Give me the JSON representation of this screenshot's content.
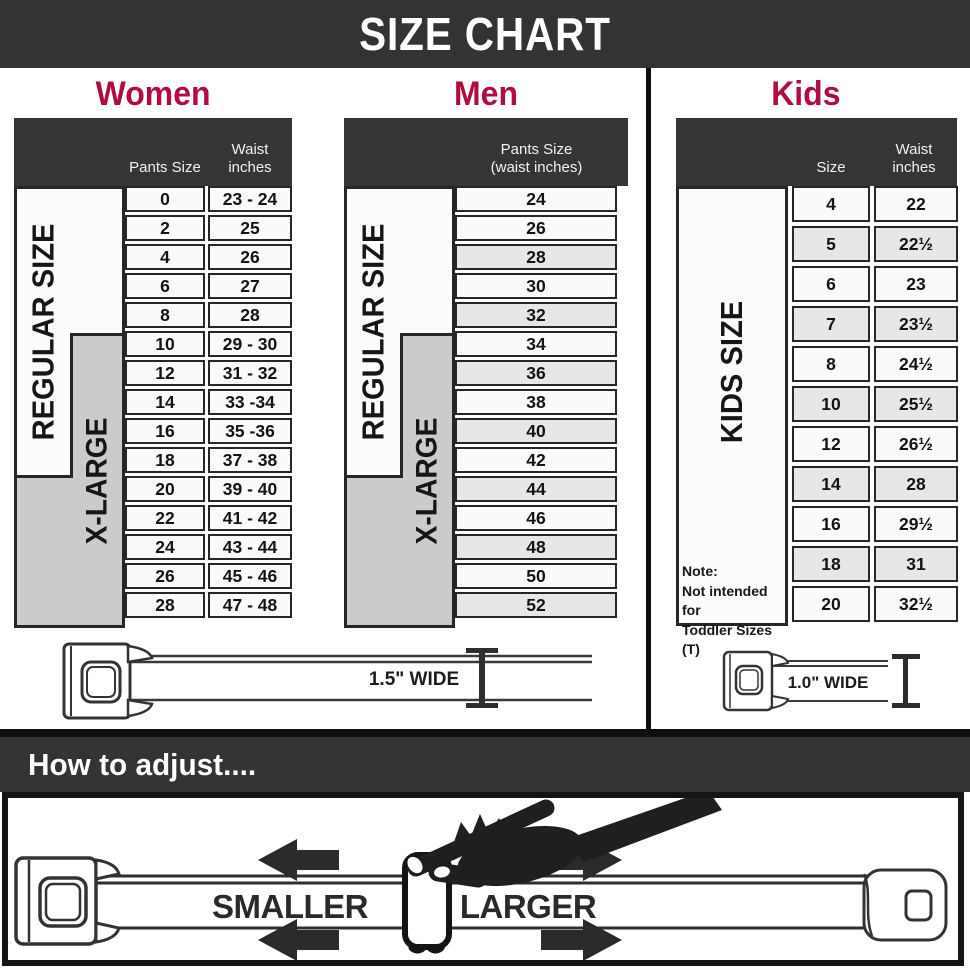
{
  "page_title": "SIZE CHART",
  "colors": {
    "accent_heading": "#b00d3e",
    "dark_band": "#333333",
    "xlarge_gray": "#cbcbcb",
    "alt_row": "#e7e7e7"
  },
  "sections": {
    "women": {
      "heading": "Women",
      "columns": {
        "col1": "Pants Size",
        "col2_line1": "Waist",
        "col2_line2": "inches"
      },
      "size_groups": {
        "regular": "REGULAR SIZE",
        "xlarge": "X-LARGE"
      },
      "rows": [
        {
          "pants_size": "0",
          "waist": "23 - 24"
        },
        {
          "pants_size": "2",
          "waist": "25"
        },
        {
          "pants_size": "4",
          "waist": "26"
        },
        {
          "pants_size": "6",
          "waist": "27"
        },
        {
          "pants_size": "8",
          "waist": "28"
        },
        {
          "pants_size": "10",
          "waist": "29 - 30"
        },
        {
          "pants_size": "12",
          "waist": "31 - 32"
        },
        {
          "pants_size": "14",
          "waist": "33 -34"
        },
        {
          "pants_size": "16",
          "waist": "35 -36"
        },
        {
          "pants_size": "18",
          "waist": "37 - 38"
        },
        {
          "pants_size": "20",
          "waist": "39 - 40"
        },
        {
          "pants_size": "22",
          "waist": "41 - 42"
        },
        {
          "pants_size": "24",
          "waist": "43 - 44"
        },
        {
          "pants_size": "26",
          "waist": "45 - 46"
        },
        {
          "pants_size": "28",
          "waist": "47 - 48"
        }
      ],
      "belt_width_label": "1.5\" WIDE"
    },
    "men": {
      "heading": "Men",
      "columns": {
        "header_line1": "Pants Size",
        "header_line2": "(waist inches)"
      },
      "size_groups": {
        "regular": "REGULAR SIZE",
        "xlarge": "X-LARGE"
      },
      "rows": [
        "24",
        "26",
        "28",
        "30",
        "32",
        "34",
        "36",
        "38",
        "40",
        "42",
        "44",
        "46",
        "48",
        "50",
        "52"
      ]
    },
    "kids": {
      "heading": "Kids",
      "columns": {
        "col1": "Size",
        "col2_line1": "Waist",
        "col2_line2": "inches"
      },
      "size_group": "KIDS SIZE",
      "note": {
        "line1": "Note:",
        "line2": "Not intended for",
        "line3": "Toddler Sizes (T)"
      },
      "rows": [
        {
          "size": "4",
          "waist": "22"
        },
        {
          "size": "5",
          "waist": "22½"
        },
        {
          "size": "6",
          "waist": "23"
        },
        {
          "size": "7",
          "waist": "23½"
        },
        {
          "size": "8",
          "waist": "24½"
        },
        {
          "size": "10",
          "waist": "25½"
        },
        {
          "size": "12",
          "waist": "26½"
        },
        {
          "size": "14",
          "waist": "28"
        },
        {
          "size": "16",
          "waist": "29½"
        },
        {
          "size": "18",
          "waist": "31"
        },
        {
          "size": "20",
          "waist": "32½"
        }
      ],
      "belt_width_label": "1.0\" WIDE"
    }
  },
  "adjust": {
    "heading": "How to adjust....",
    "smaller": "SMALLER",
    "larger": "LARGER"
  }
}
